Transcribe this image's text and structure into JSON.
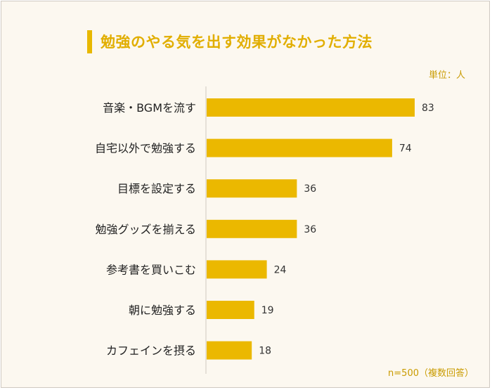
{
  "title": "勉強のやる気を出す効果がなかった方法",
  "unit_label": "単位：人",
  "note": "n=500（複数回答）",
  "colors": {
    "bar": "#ebb800",
    "title": "#e1ae00",
    "accent_bar": "#e8b800",
    "background": "#fcf8f0",
    "axis": "#cfcac0"
  },
  "chart_data": {
    "type": "bar",
    "orientation": "horizontal",
    "categories": [
      "音楽・BGMを流す",
      "自宅以外で勉強する",
      "目標を設定する",
      "勉強グッズを揃える",
      "参考書を買いこむ",
      "朝に勉強する",
      "カフェインを摂る"
    ],
    "values": [
      83,
      74,
      36,
      36,
      24,
      19,
      18
    ],
    "title": "勉強のやる気を出す効果がなかった方法",
    "xlabel": "",
    "ylabel": "",
    "xlim": [
      0,
      83
    ],
    "grid": false
  }
}
